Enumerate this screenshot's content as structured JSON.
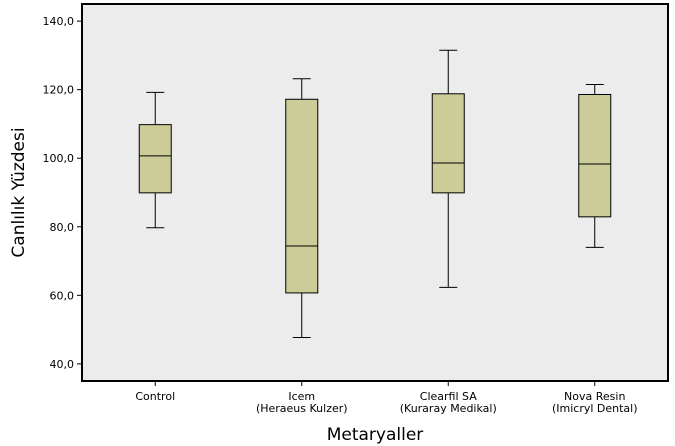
{
  "chart_data": {
    "type": "boxplot",
    "title": "",
    "xlabel": "Metaryaller",
    "ylabel": "Canlılık Yüzdesi",
    "ylim": [
      35,
      145
    ],
    "yticks": [
      "40,0",
      "60,0",
      "80,0",
      "100,0",
      "120,0",
      "140,0"
    ],
    "ytick_values": [
      40,
      60,
      80,
      100,
      120,
      140
    ],
    "categories": [
      [
        "Control"
      ],
      [
        "Icem",
        "(Heraeus Kulzer)"
      ],
      [
        "Clearfil SA",
        "(Kuraray Medikal)"
      ],
      [
        "Nova Resin",
        "(Imicryl Dental)"
      ]
    ],
    "boxes": [
      {
        "min": 79.7,
        "q1": 89.9,
        "median": 100.7,
        "q3": 109.8,
        "max": 119.2
      },
      {
        "min": 47.7,
        "q1": 60.7,
        "median": 74.4,
        "q3": 117.2,
        "max": 123.2
      },
      {
        "min": 62.3,
        "q1": 89.9,
        "median": 98.6,
        "q3": 118.8,
        "max": 131.5
      },
      {
        "min": 74.0,
        "q1": 82.9,
        "median": 98.3,
        "q3": 118.6,
        "max": 121.5
      }
    ],
    "grid": false,
    "colors": {
      "box_fill": "#cccc99",
      "plot_background": "#ececec",
      "frame": "#000000"
    }
  }
}
